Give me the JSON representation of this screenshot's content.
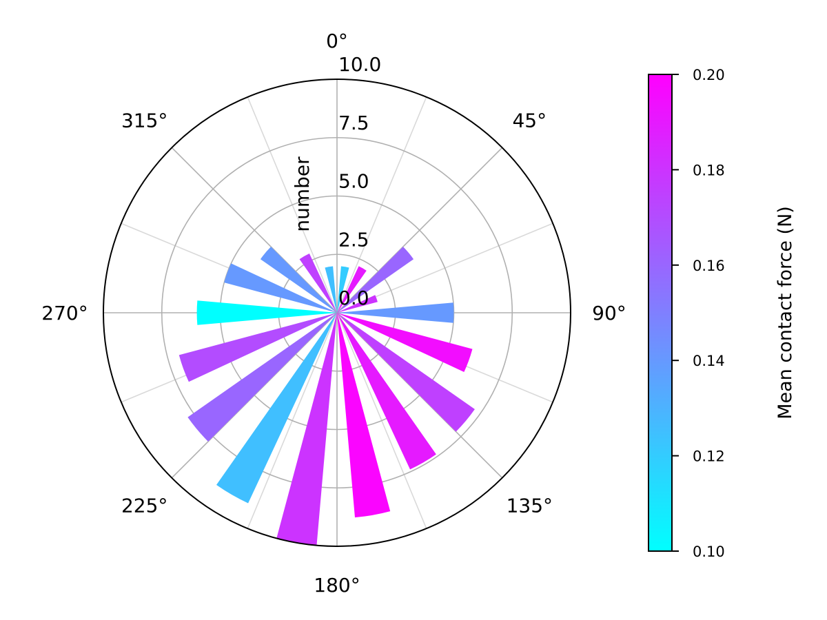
{
  "chart_data": {
    "type": "polar-bar",
    "ylabel": "number",
    "theta_zero": "top",
    "theta_direction": "clockwise",
    "theta_tick_labels": [
      "0°",
      "45°",
      "90°",
      "135°",
      "180°",
      "225°",
      "270°",
      "315°"
    ],
    "theta_ticks_deg": [
      0,
      45,
      90,
      135,
      180,
      225,
      270,
      315
    ],
    "r_tick_labels": [
      "0.0",
      "2.5",
      "5.0",
      "7.5",
      "10.0"
    ],
    "r_ticks": [
      0,
      2.5,
      5,
      7.5,
      10
    ],
    "rlim": [
      0,
      10
    ],
    "grid": true,
    "bar_width_deg": 10,
    "bars": [
      {
        "theta": 10,
        "value": 2.0,
        "force": 0.12
      },
      {
        "theta": 30,
        "value": 2.2,
        "force": 0.19
      },
      {
        "theta": 50,
        "value": 4.0,
        "force": 0.16
      },
      {
        "theta": 70,
        "value": 1.8,
        "force": 0.18
      },
      {
        "theta": 90,
        "value": 5.0,
        "force": 0.14
      },
      {
        "theta": 110,
        "value": 6.0,
        "force": 0.195
      },
      {
        "theta": 130,
        "value": 7.2,
        "force": 0.175
      },
      {
        "theta": 150,
        "value": 7.4,
        "force": 0.19
      },
      {
        "theta": 170,
        "value": 8.8,
        "force": 0.198
      },
      {
        "theta": 190,
        "value": 10.0,
        "force": 0.18
      },
      {
        "theta": 210,
        "value": 9.0,
        "force": 0.125
      },
      {
        "theta": 230,
        "value": 7.8,
        "force": 0.16
      },
      {
        "theta": 250,
        "value": 7.0,
        "force": 0.17
      },
      {
        "theta": 270,
        "value": 6.0,
        "force": 0.1
      },
      {
        "theta": 290,
        "value": 5.0,
        "force": 0.14
      },
      {
        "theta": 310,
        "value": 4.0,
        "force": 0.14
      },
      {
        "theta": 330,
        "value": 2.8,
        "force": 0.175
      },
      {
        "theta": 350,
        "value": 2.0,
        "force": 0.125
      }
    ],
    "colorbar": {
      "label": "Mean contact force (N)",
      "range": [
        0.1,
        0.2
      ],
      "tick_values": [
        0.1,
        0.12,
        0.14,
        0.16,
        0.18,
        0.2
      ],
      "tick_labels": [
        "0.10",
        "0.12",
        "0.14",
        "0.16",
        "0.18",
        "0.20"
      ],
      "colormap": "cool",
      "color_low": "#00ffff",
      "color_high": "#ff00ff"
    }
  }
}
